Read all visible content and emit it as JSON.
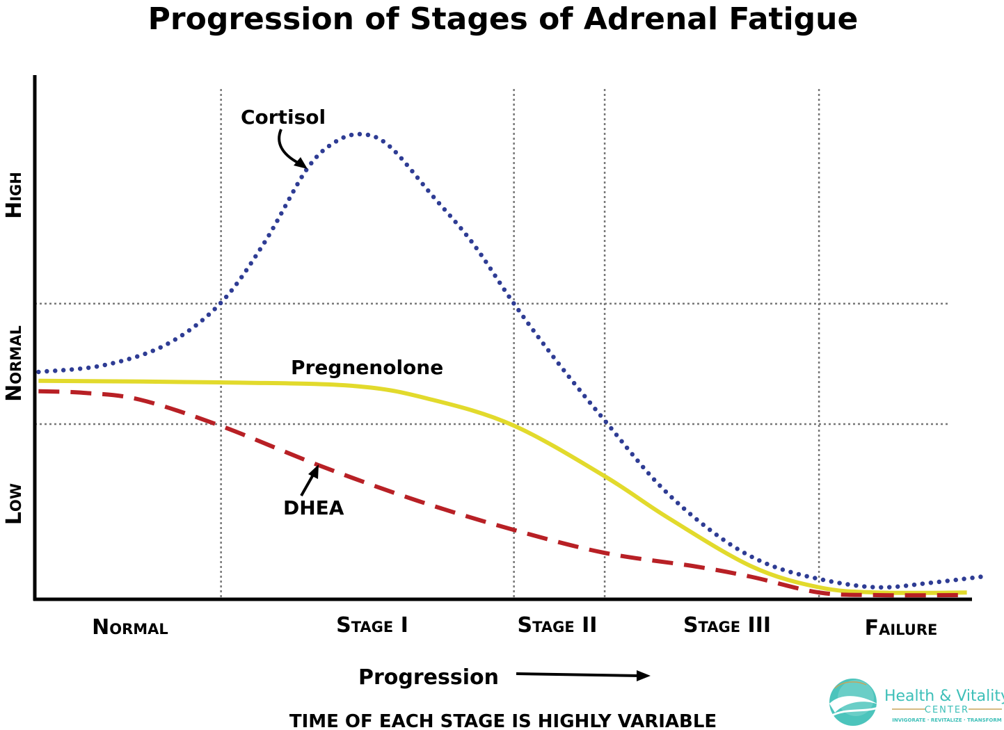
{
  "chart_data": {
    "type": "line",
    "title": "Progression of Stages of Adrenal Fatigue",
    "xlabel": "Progression",
    "footnote": "TIME OF EACH STAGE IS HIGHLY VARIABLE",
    "x_categories": [
      "Normal",
      "Stage I",
      "Stage II",
      "Stage III",
      "Failure"
    ],
    "y_categories": [
      "Low",
      "Normal",
      "High"
    ],
    "xlim": [
      0,
      100
    ],
    "ylim": [
      0,
      100
    ],
    "stage_boundaries_x": [
      19.9,
      51.2,
      60.9,
      83.8
    ],
    "normal_band_y": [
      33.6,
      56.7
    ],
    "grid": "dotted stage boundaries and normal band",
    "legend": "none (inline labels)",
    "series": [
      {
        "name": "Cortisol",
        "style": "dotted",
        "color": "#2e3c94",
        "x": [
          0.4,
          7.4,
          14.1,
          19.8,
          24.5,
          29.0,
          32.0,
          34.9,
          37.9,
          42.4,
          46.8,
          51.2,
          55.8,
          60.9,
          66.9,
          72.9,
          78.1,
          83.8,
          90.0,
          95.9,
          101.9
        ],
        "y": [
          43.6,
          44.9,
          48.9,
          56.7,
          68.3,
          82.3,
          87.6,
          89.2,
          86.9,
          77.6,
          68.3,
          56.7,
          45.6,
          34.3,
          21.6,
          12.3,
          6.9,
          3.9,
          2.3,
          3.2,
          4.5
        ]
      },
      {
        "name": "Pregnenolone",
        "style": "solid",
        "color": "#e2da2c",
        "x": [
          0.4,
          19.8,
          34.2,
          42.4,
          51.2,
          60.9,
          67.7,
          76.6,
          83.8,
          90.0,
          99.6
        ],
        "y": [
          41.9,
          41.6,
          40.9,
          38.3,
          33.3,
          23.6,
          15.6,
          6.3,
          2.3,
          1.3,
          1.3
        ]
      },
      {
        "name": "DHEA",
        "style": "dashed",
        "color": "#b82025",
        "x": [
          0.4,
          5.2,
          11.2,
          19.8,
          30.5,
          40.9,
          51.2,
          60.9,
          70.6,
          76.6,
          83.8,
          90.0,
          99.6
        ],
        "y": [
          39.9,
          39.6,
          38.3,
          33.3,
          25.6,
          18.9,
          13.3,
          8.9,
          6.3,
          4.3,
          1.3,
          0.8,
          0.8
        ]
      }
    ]
  },
  "logo": {
    "name": "Health & Vitality",
    "sub": "CENTER",
    "tagline": "INVIGORATE · REVITALIZE · TRANSFORM",
    "color": "#3dbfb8"
  }
}
